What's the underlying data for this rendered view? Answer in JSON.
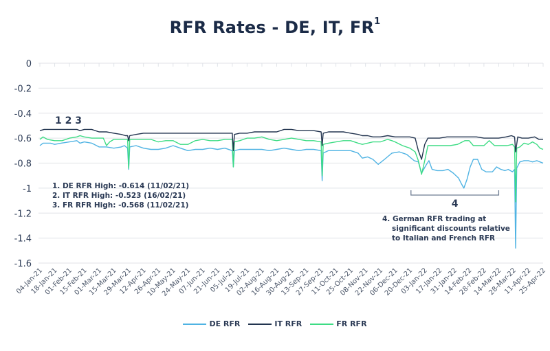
{
  "chart_data": {
    "type": "line",
    "title": "RFR Rates - DE, IT, FR",
    "title_superscript": "1",
    "xlabel": "",
    "ylabel": "",
    "ylim": [
      -1.6,
      0
    ],
    "yticks": [
      0,
      -0.2,
      -0.4,
      -0.6,
      -0.8,
      -1,
      -1.2,
      -1.4,
      -1.6
    ],
    "ytick_labels": [
      "0",
      "-0.2",
      "-0.4",
      "-0.6",
      "-0.8",
      "-1",
      "-1.2",
      "-1.4",
      "-1.6"
    ],
    "grid": true,
    "x_start": "04-Jan-21",
    "x_end": "25-Apr-22",
    "x_units": "days since 04-Jan-21",
    "xtick_labels": [
      "04-Jan-21",
      "18-Jan-21",
      "01-Feb-21",
      "15-Feb-21",
      "01-Mar-21",
      "15-Mar-21",
      "29-Mar-21",
      "12-Apr-21",
      "26-Apr-21",
      "10-May-21",
      "24-May-21",
      "07-Jun-21",
      "21-Jun-21",
      "05-Jul-21",
      "19-Jul-21",
      "02-Aug-21",
      "16-Aug-21",
      "30-Aug-21",
      "13-Sep-21",
      "27-Sep-21",
      "11-Oct-21",
      "25-Oct-21",
      "08-Nov-21",
      "22-Nov-21",
      "06-Dec-21",
      "20-Dec-21",
      "03-Jan-22",
      "17-Jan-22",
      "31-Jan-22",
      "14-Feb-22",
      "28-Feb-22",
      "14-Mar-22",
      "28-Mar-22",
      "11-Apr-22",
      "25-Apr-22"
    ],
    "legend_position": "bottom",
    "series": [
      {
        "name": "DE RFR",
        "color": "#4fb3e3",
        "points": [
          [
            0,
            -0.66
          ],
          [
            3,
            -0.64
          ],
          [
            10,
            -0.64
          ],
          [
            14,
            -0.65
          ],
          [
            20,
            -0.64
          ],
          [
            28,
            -0.63
          ],
          [
            35,
            -0.62
          ],
          [
            38,
            -0.64
          ],
          [
            42,
            -0.63
          ],
          [
            49,
            -0.64
          ],
          [
            56,
            -0.67
          ],
          [
            63,
            -0.67
          ],
          [
            70,
            -0.68
          ],
          [
            77,
            -0.67
          ],
          [
            80,
            -0.66
          ],
          [
            83,
            -0.68
          ],
          [
            84,
            -0.85
          ],
          [
            85,
            -0.67
          ],
          [
            91,
            -0.66
          ],
          [
            98,
            -0.68
          ],
          [
            105,
            -0.69
          ],
          [
            112,
            -0.69
          ],
          [
            119,
            -0.68
          ],
          [
            126,
            -0.66
          ],
          [
            133,
            -0.68
          ],
          [
            140,
            -0.7
          ],
          [
            147,
            -0.69
          ],
          [
            154,
            -0.69
          ],
          [
            161,
            -0.68
          ],
          [
            168,
            -0.69
          ],
          [
            175,
            -0.68
          ],
          [
            182,
            -0.7
          ],
          [
            183,
            -0.83
          ],
          [
            184,
            -0.7
          ],
          [
            189,
            -0.69
          ],
          [
            196,
            -0.69
          ],
          [
            203,
            -0.69
          ],
          [
            210,
            -0.69
          ],
          [
            217,
            -0.7
          ],
          [
            224,
            -0.69
          ],
          [
            231,
            -0.68
          ],
          [
            238,
            -0.69
          ],
          [
            245,
            -0.7
          ],
          [
            252,
            -0.69
          ],
          [
            259,
            -0.69
          ],
          [
            266,
            -0.7
          ],
          [
            267,
            -0.94
          ],
          [
            268,
            -0.72
          ],
          [
            273,
            -0.7
          ],
          [
            280,
            -0.7
          ],
          [
            287,
            -0.7
          ],
          [
            294,
            -0.7
          ],
          [
            301,
            -0.72
          ],
          [
            305,
            -0.76
          ],
          [
            310,
            -0.75
          ],
          [
            315,
            -0.77
          ],
          [
            320,
            -0.81
          ],
          [
            326,
            -0.77
          ],
          [
            333,
            -0.72
          ],
          [
            340,
            -0.71
          ],
          [
            347,
            -0.73
          ],
          [
            354,
            -0.78
          ],
          [
            358,
            -0.79
          ],
          [
            361,
            -0.88
          ],
          [
            365,
            -0.82
          ],
          [
            368,
            -0.78
          ],
          [
            371,
            -0.85
          ],
          [
            376,
            -0.86
          ],
          [
            381,
            -0.86
          ],
          [
            386,
            -0.85
          ],
          [
            391,
            -0.88
          ],
          [
            396,
            -0.92
          ],
          [
            399,
            -0.97
          ],
          [
            401,
            -1.0
          ],
          [
            404,
            -0.93
          ],
          [
            407,
            -0.83
          ],
          [
            410,
            -0.77
          ],
          [
            414,
            -0.77
          ],
          [
            418,
            -0.85
          ],
          [
            422,
            -0.87
          ],
          [
            428,
            -0.87
          ],
          [
            432,
            -0.83
          ],
          [
            436,
            -0.85
          ],
          [
            440,
            -0.86
          ],
          [
            443,
            -0.85
          ],
          [
            447,
            -0.87
          ],
          [
            449,
            -0.85
          ],
          [
            450,
            -1.48
          ],
          [
            451,
            -0.84
          ],
          [
            454,
            -0.79
          ],
          [
            458,
            -0.78
          ],
          [
            462,
            -0.78
          ],
          [
            466,
            -0.79
          ],
          [
            470,
            -0.78
          ],
          [
            473,
            -0.79
          ],
          [
            476,
            -0.8
          ]
        ]
      },
      {
        "name": "IT RFR",
        "color": "#22344f",
        "points": [
          [
            0,
            -0.54
          ],
          [
            4,
            -0.53
          ],
          [
            14,
            -0.53
          ],
          [
            28,
            -0.53
          ],
          [
            35,
            -0.53
          ],
          [
            38,
            -0.54
          ],
          [
            42,
            -0.53
          ],
          [
            49,
            -0.53
          ],
          [
            56,
            -0.55
          ],
          [
            63,
            -0.55
          ],
          [
            70,
            -0.56
          ],
          [
            77,
            -0.57
          ],
          [
            81,
            -0.58
          ],
          [
            83,
            -0.58
          ],
          [
            84,
            -0.62
          ],
          [
            85,
            -0.58
          ],
          [
            91,
            -0.57
          ],
          [
            98,
            -0.56
          ],
          [
            105,
            -0.56
          ],
          [
            119,
            -0.56
          ],
          [
            140,
            -0.56
          ],
          [
            161,
            -0.56
          ],
          [
            175,
            -0.56
          ],
          [
            182,
            -0.56
          ],
          [
            183,
            -0.7
          ],
          [
            184,
            -0.57
          ],
          [
            189,
            -0.56
          ],
          [
            196,
            -0.56
          ],
          [
            203,
            -0.55
          ],
          [
            210,
            -0.55
          ],
          [
            224,
            -0.55
          ],
          [
            231,
            -0.53
          ],
          [
            238,
            -0.53
          ],
          [
            245,
            -0.54
          ],
          [
            259,
            -0.54
          ],
          [
            266,
            -0.55
          ],
          [
            267,
            -0.66
          ],
          [
            268,
            -0.56
          ],
          [
            273,
            -0.55
          ],
          [
            280,
            -0.55
          ],
          [
            287,
            -0.55
          ],
          [
            294,
            -0.56
          ],
          [
            301,
            -0.57
          ],
          [
            305,
            -0.58
          ],
          [
            310,
            -0.58
          ],
          [
            315,
            -0.59
          ],
          [
            322,
            -0.59
          ],
          [
            329,
            -0.58
          ],
          [
            336,
            -0.59
          ],
          [
            343,
            -0.59
          ],
          [
            350,
            -0.59
          ],
          [
            355,
            -0.6
          ],
          [
            358,
            -0.7
          ],
          [
            361,
            -0.77
          ],
          [
            364,
            -0.65
          ],
          [
            367,
            -0.6
          ],
          [
            371,
            -0.6
          ],
          [
            378,
            -0.6
          ],
          [
            385,
            -0.59
          ],
          [
            392,
            -0.59
          ],
          [
            399,
            -0.59
          ],
          [
            406,
            -0.59
          ],
          [
            413,
            -0.59
          ],
          [
            420,
            -0.6
          ],
          [
            427,
            -0.6
          ],
          [
            434,
            -0.6
          ],
          [
            441,
            -0.59
          ],
          [
            446,
            -0.58
          ],
          [
            449,
            -0.59
          ],
          [
            450,
            -0.71
          ],
          [
            452,
            -0.59
          ],
          [
            456,
            -0.6
          ],
          [
            462,
            -0.6
          ],
          [
            468,
            -0.59
          ],
          [
            472,
            -0.61
          ],
          [
            476,
            -0.61
          ]
        ]
      },
      {
        "name": "FR RFR",
        "color": "#3ddc84",
        "points": [
          [
            0,
            -0.61
          ],
          [
            3,
            -0.59
          ],
          [
            7,
            -0.61
          ],
          [
            14,
            -0.62
          ],
          [
            21,
            -0.62
          ],
          [
            28,
            -0.6
          ],
          [
            35,
            -0.59
          ],
          [
            38,
            -0.58
          ],
          [
            42,
            -0.59
          ],
          [
            49,
            -0.6
          ],
          [
            56,
            -0.6
          ],
          [
            60,
            -0.6
          ],
          [
            63,
            -0.66
          ],
          [
            66,
            -0.63
          ],
          [
            70,
            -0.61
          ],
          [
            77,
            -0.61
          ],
          [
            83,
            -0.61
          ],
          [
            84,
            -0.84
          ],
          [
            85,
            -0.61
          ],
          [
            91,
            -0.61
          ],
          [
            98,
            -0.61
          ],
          [
            105,
            -0.61
          ],
          [
            112,
            -0.63
          ],
          [
            119,
            -0.62
          ],
          [
            126,
            -0.62
          ],
          [
            133,
            -0.65
          ],
          [
            140,
            -0.65
          ],
          [
            147,
            -0.62
          ],
          [
            154,
            -0.61
          ],
          [
            161,
            -0.62
          ],
          [
            168,
            -0.62
          ],
          [
            175,
            -0.61
          ],
          [
            182,
            -0.61
          ],
          [
            183,
            -0.83
          ],
          [
            184,
            -0.63
          ],
          [
            189,
            -0.62
          ],
          [
            196,
            -0.6
          ],
          [
            203,
            -0.6
          ],
          [
            210,
            -0.59
          ],
          [
            217,
            -0.61
          ],
          [
            224,
            -0.62
          ],
          [
            231,
            -0.61
          ],
          [
            238,
            -0.6
          ],
          [
            245,
            -0.61
          ],
          [
            252,
            -0.62
          ],
          [
            259,
            -0.62
          ],
          [
            266,
            -0.63
          ],
          [
            267,
            -0.9
          ],
          [
            268,
            -0.65
          ],
          [
            273,
            -0.64
          ],
          [
            280,
            -0.63
          ],
          [
            287,
            -0.62
          ],
          [
            294,
            -0.62
          ],
          [
            301,
            -0.64
          ],
          [
            305,
            -0.65
          ],
          [
            310,
            -0.64
          ],
          [
            315,
            -0.63
          ],
          [
            322,
            -0.63
          ],
          [
            329,
            -0.61
          ],
          [
            333,
            -0.62
          ],
          [
            336,
            -0.63
          ],
          [
            343,
            -0.66
          ],
          [
            350,
            -0.68
          ],
          [
            355,
            -0.71
          ],
          [
            358,
            -0.78
          ],
          [
            361,
            -0.89
          ],
          [
            364,
            -0.78
          ],
          [
            367,
            -0.66
          ],
          [
            374,
            -0.66
          ],
          [
            381,
            -0.66
          ],
          [
            388,
            -0.66
          ],
          [
            395,
            -0.65
          ],
          [
            402,
            -0.62
          ],
          [
            406,
            -0.62
          ],
          [
            410,
            -0.66
          ],
          [
            414,
            -0.66
          ],
          [
            420,
            -0.66
          ],
          [
            425,
            -0.62
          ],
          [
            430,
            -0.66
          ],
          [
            436,
            -0.66
          ],
          [
            442,
            -0.66
          ],
          [
            447,
            -0.65
          ],
          [
            449,
            -0.67
          ],
          [
            450,
            -1.11
          ],
          [
            451,
            -0.68
          ],
          [
            454,
            -0.67
          ],
          [
            458,
            -0.64
          ],
          [
            462,
            -0.65
          ],
          [
            466,
            -0.63
          ],
          [
            470,
            -0.65
          ],
          [
            473,
            -0.68
          ],
          [
            476,
            -0.69
          ]
        ]
      }
    ],
    "annotations": {
      "markers_label": "1 2 3",
      "highs": [
        "1. DE RFR High: -0.614 (11/02/21)",
        "2. IT RFR High: -0.523 (16/02/21)",
        "3. FR RFR High: -0.568 (11/02/21)"
      ],
      "bracket_label": "4",
      "bracket_range": [
        "20-Dec-21",
        "14-Mar-22"
      ],
      "note_lines": [
        "4. German RFR trading at",
        "significant discounts relative",
        "to Italian and French RFR"
      ]
    }
  },
  "legend": [
    {
      "label": "DE RFR",
      "color": "#4fb3e3"
    },
    {
      "label": "IT RFR",
      "color": "#22344f"
    },
    {
      "label": "FR RFR",
      "color": "#3ddc84"
    }
  ]
}
